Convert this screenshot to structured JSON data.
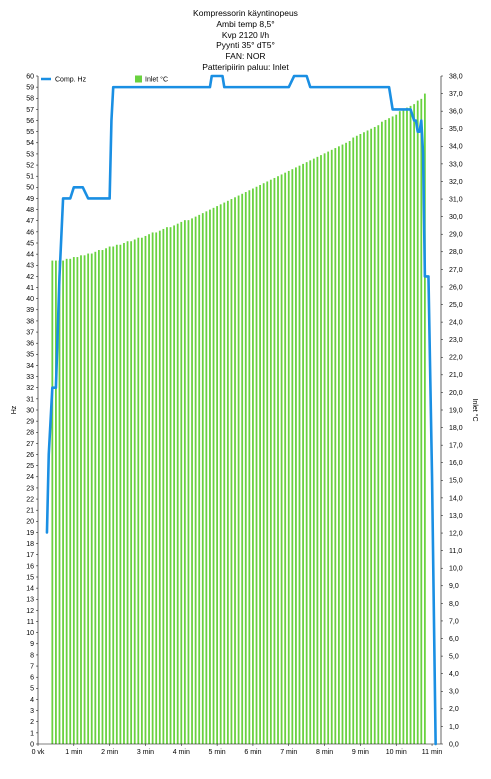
{
  "chart_data": {
    "type": "bar+line",
    "title_lines": [
      "Kompressorin käyntinopeus",
      "Ambi temp 8,5°",
      "Kvp 2120 l/h",
      "Pyynti 35° dT5°",
      "FAN: NOR",
      "Patteripiirin paluu: Inlet"
    ],
    "x_unit": "minutes",
    "x_tick_labels": [
      "0 vk",
      "1 min",
      "2 min",
      "3 min",
      "4 min",
      "5 min",
      "6 min",
      "7 min",
      "8 min",
      "9 min",
      "10 min",
      "11 min"
    ],
    "xlim": [
      0,
      11.25
    ],
    "ylabel_left": "Hz",
    "ylabel_right": "Inlet °C",
    "ylim_left": [
      0,
      60
    ],
    "ylim_right": [
      0,
      38
    ],
    "left_tick_labels": [
      "0",
      "1",
      "2",
      "3",
      "4",
      "5",
      "6",
      "7",
      "8",
      "9",
      "10",
      "11",
      "12",
      "13",
      "14",
      "15",
      "16",
      "17",
      "18",
      "19",
      "20",
      "21",
      "22",
      "23",
      "24",
      "25",
      "26",
      "27",
      "28",
      "29",
      "30",
      "31",
      "32",
      "33",
      "34",
      "35",
      "36",
      "37",
      "38",
      "39",
      "40",
      "41",
      "42",
      "43",
      "44",
      "45",
      "46",
      "47",
      "48",
      "49",
      "50",
      "51",
      "52",
      "53",
      "54",
      "55",
      "56",
      "57",
      "58",
      "59",
      "60"
    ],
    "right_tick_labels": [
      "0,0",
      "1,0",
      "2,0",
      "3,0",
      "4,0",
      "5,0",
      "6,0",
      "7,0",
      "8,0",
      "9,0",
      "10,0",
      "11,0",
      "12,0",
      "13,0",
      "14,0",
      "15,0",
      "16,0",
      "17,0",
      "18,0",
      "19,0",
      "20,0",
      "21,0",
      "22,0",
      "23,0",
      "24,0",
      "25,0",
      "26,0",
      "27,0",
      "28,0",
      "29,0",
      "30,0",
      "31,0",
      "32,0",
      "33,0",
      "34,0",
      "35,0",
      "36,0",
      "37,0",
      "38,0"
    ],
    "legend_position": "top",
    "series": [
      {
        "name": "Comp. Hz",
        "type": "line",
        "axis": "left",
        "color": "#1a8fe3",
        "x": [
          0.25,
          0.3,
          0.4,
          0.5,
          0.6,
          0.7,
          0.8,
          0.9,
          1.0,
          1.1,
          1.25,
          1.4,
          1.5,
          1.7,
          1.9,
          2.0,
          2.05,
          2.1,
          2.2,
          2.5,
          3.0,
          3.5,
          4.0,
          4.5,
          4.8,
          4.85,
          5.0,
          5.15,
          5.2,
          5.5,
          6.0,
          6.5,
          7.0,
          7.15,
          7.2,
          7.5,
          7.6,
          8.0,
          8.5,
          9.0,
          9.5,
          9.8,
          9.9,
          10.0,
          10.3,
          10.35,
          10.4,
          10.5,
          10.55,
          10.6,
          10.65,
          10.7,
          10.75,
          10.8,
          10.9,
          11.0,
          11.1
        ],
        "values": [
          19,
          26,
          32,
          32,
          42,
          49,
          49,
          49,
          50,
          50,
          50,
          49,
          49,
          49,
          49,
          49,
          56,
          59,
          59,
          59,
          59,
          59,
          59,
          59,
          59,
          60,
          60,
          60,
          59,
          59,
          59,
          59,
          59,
          60,
          60,
          60,
          59,
          59,
          59,
          59,
          59,
          59,
          57,
          57,
          57,
          57,
          57,
          56,
          56,
          55,
          55,
          56,
          53,
          42,
          42,
          24,
          0
        ]
      },
      {
        "name": "Inlet °C",
        "type": "bar",
        "axis": "right",
        "color": "#69d23f",
        "bars_start_minutes": 0.4,
        "bars_step_minutes": 0.1,
        "values": [
          27.5,
          27.5,
          27.5,
          27.5,
          27.6,
          27.6,
          27.7,
          27.7,
          27.8,
          27.8,
          27.9,
          27.9,
          28.0,
          28.1,
          28.1,
          28.2,
          28.3,
          28.3,
          28.4,
          28.4,
          28.5,
          28.6,
          28.6,
          28.7,
          28.8,
          28.8,
          28.9,
          29.0,
          29.1,
          29.1,
          29.2,
          29.3,
          29.4,
          29.4,
          29.5,
          29.6,
          29.7,
          29.8,
          29.8,
          29.9,
          30.0,
          30.1,
          30.2,
          30.3,
          30.4,
          30.5,
          30.6,
          30.7,
          30.8,
          30.9,
          31.0,
          31.1,
          31.2,
          31.3,
          31.4,
          31.5,
          31.6,
          31.7,
          31.8,
          31.9,
          32.0,
          32.1,
          32.2,
          32.3,
          32.4,
          32.5,
          32.6,
          32.7,
          32.8,
          32.9,
          33.0,
          33.1,
          33.2,
          33.3,
          33.4,
          33.5,
          33.6,
          33.7,
          33.8,
          33.9,
          34.0,
          34.1,
          34.2,
          34.3,
          34.5,
          34.6,
          34.7,
          34.8,
          34.9,
          35.0,
          35.1,
          35.2,
          35.4,
          35.5,
          35.6,
          35.7,
          35.8,
          36.0,
          36.1,
          36.2,
          36.3,
          36.4,
          36.6,
          36.7,
          37.0
        ]
      }
    ],
    "grid": false
  }
}
